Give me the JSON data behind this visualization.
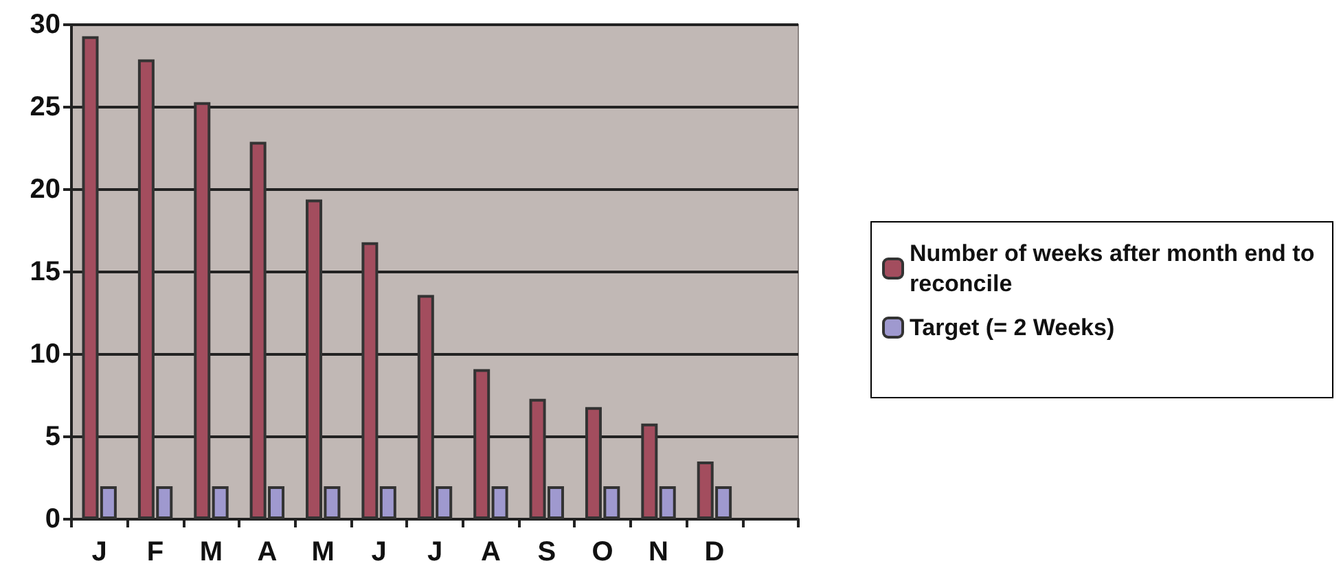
{
  "chart_data": {
    "type": "bar",
    "categories": [
      "J",
      "F",
      "M",
      "A",
      "M",
      "J",
      "J",
      "A",
      "S",
      "O",
      "N",
      "D",
      null
    ],
    "series": [
      {
        "name": "Number of weeks after month end to reconcile",
        "color": "#a34d5e",
        "values": [
          29.3,
          27.9,
          25.3,
          22.9,
          19.4,
          16.8,
          13.6,
          9.1,
          7.3,
          6.8,
          5.8,
          3.5,
          null
        ]
      },
      {
        "name": "Target (= 2 Weeks)",
        "color": "#9f99cf",
        "values": [
          2,
          2,
          2,
          2,
          2,
          2,
          2,
          2,
          2,
          2,
          2,
          2,
          null
        ]
      }
    ],
    "ylim": [
      0,
      30
    ],
    "yticks": [
      0,
      5,
      10,
      15,
      20,
      25,
      30
    ],
    "grid": "y",
    "legend": "right"
  }
}
